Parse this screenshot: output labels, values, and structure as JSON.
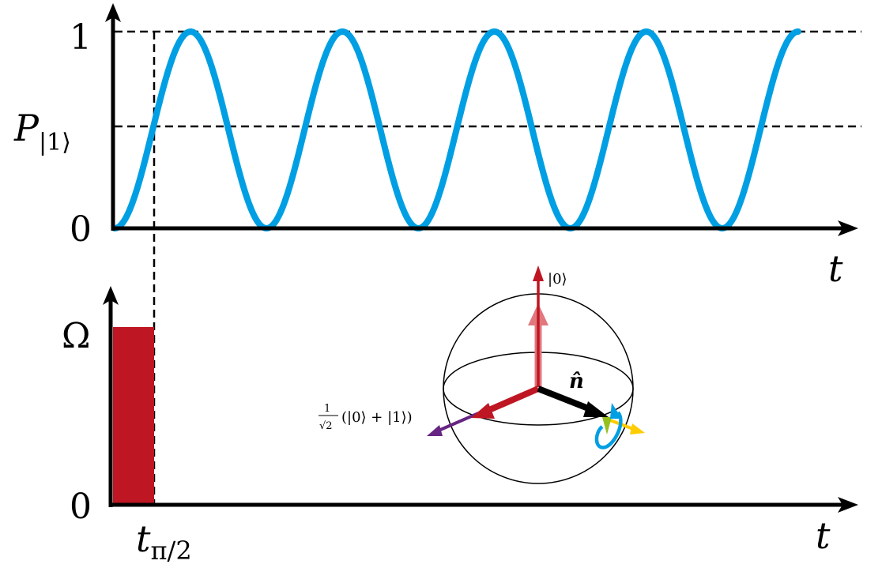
{
  "top_plot": {
    "y_axis_label_main": "P",
    "y_axis_label_sub": "|1⟩",
    "y_tick_high": "1",
    "y_tick_low": "0",
    "x_axis_label": "t",
    "curve_color": "#009fe3",
    "oscillation_cycles": 4.5,
    "dashed_levels": [
      1,
      0.5
    ]
  },
  "bottom_plot": {
    "y_tick_high": "Ω",
    "y_tick_low": "0",
    "x_axis_label": "t",
    "pulse_label_main": "t",
    "pulse_label_sub": "π/2",
    "pulse_color": "#be1622"
  },
  "bloch_sphere": {
    "state_zero_label": "|0⟩",
    "axis_label": "n̂",
    "superposition_label_frac_num": "1",
    "superposition_label_frac_den": "√2",
    "superposition_label_rest": "(|0⟩ + |1⟩)",
    "colors": {
      "initial_state": "#be1622",
      "initial_state_faded": "#e0787e",
      "rotation_axis": "#000000",
      "superposition_state": "#662483",
      "rotation_arrow": "#009fe3",
      "yellow_arrow": "#ffcc00",
      "green_arrow": "#95c11f"
    }
  }
}
